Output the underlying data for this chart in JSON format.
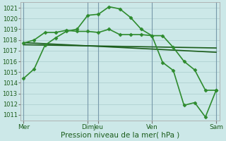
{
  "background_color": "#cce8e8",
  "grid_color": "#aacccc",
  "line_color_dark": "#1a5c1a",
  "line_color_light": "#2e8b2e",
  "ylim": [
    1010.5,
    1021.5
  ],
  "yticks": [
    1011,
    1012,
    1013,
    1014,
    1015,
    1016,
    1017,
    1018,
    1019,
    1020,
    1021
  ],
  "xlabel": "Pression niveau de la mer( hPa )",
  "xlim": [
    -0.3,
    18.3
  ],
  "series": [
    {
      "x": [
        0,
        1,
        2,
        3,
        4,
        5,
        6,
        7,
        8,
        9,
        10,
        11,
        12,
        13,
        14,
        15,
        16,
        17,
        18
      ],
      "y": [
        1014.4,
        1015.3,
        1017.5,
        1018.2,
        1018.8,
        1019.0,
        1020.3,
        1020.4,
        1021.1,
        1020.9,
        1020.1,
        1019.0,
        1018.4,
        1018.4,
        1017.3,
        1016.0,
        1015.2,
        1013.3,
        1013.3
      ],
      "color": "#2e8b2e",
      "lw": 1.2,
      "marker": "D",
      "ms": 2.5
    },
    {
      "x": [
        0,
        18
      ],
      "y": [
        1017.55,
        1017.25
      ],
      "color": "#1a5c1a",
      "lw": 1.2,
      "marker": null,
      "ms": 0
    },
    {
      "x": [
        0,
        18
      ],
      "y": [
        1017.75,
        1016.85
      ],
      "color": "#1a5c1a",
      "lw": 1.2,
      "marker": null,
      "ms": 0
    },
    {
      "x": [
        0,
        1,
        2,
        3,
        4,
        5,
        6,
        7,
        8,
        9,
        10,
        11,
        12,
        13,
        14,
        15,
        16,
        17,
        18
      ],
      "y": [
        1017.7,
        1018.0,
        1018.7,
        1018.7,
        1018.9,
        1018.8,
        1018.8,
        1018.7,
        1019.0,
        1018.5,
        1018.5,
        1018.5,
        1018.4,
        1015.9,
        1015.15,
        1011.9,
        1012.15,
        1010.8,
        1013.3
      ],
      "color": "#2e8b2e",
      "lw": 1.2,
      "marker": "D",
      "ms": 2.5
    }
  ],
  "vlines": [
    {
      "x": 0,
      "color": "#7799aa",
      "lw": 0.8
    },
    {
      "x": 6,
      "color": "#7799aa",
      "lw": 0.8
    },
    {
      "x": 7,
      "color": "#7799aa",
      "lw": 0.8
    },
    {
      "x": 12,
      "color": "#7799aa",
      "lw": 0.8
    },
    {
      "x": 18,
      "color": "#7799aa",
      "lw": 0.8
    }
  ],
  "xtick_labels": [
    {
      "x": 0,
      "label": "Mer"
    },
    {
      "x": 6,
      "label": "Dim"
    },
    {
      "x": 7,
      "label": "Jeu"
    },
    {
      "x": 12,
      "label": "Ven"
    },
    {
      "x": 18,
      "label": "Sam"
    }
  ],
  "tick_fontsize": 6.5,
  "xlabel_fontsize": 7.5,
  "ytick_fontsize": 6.0
}
